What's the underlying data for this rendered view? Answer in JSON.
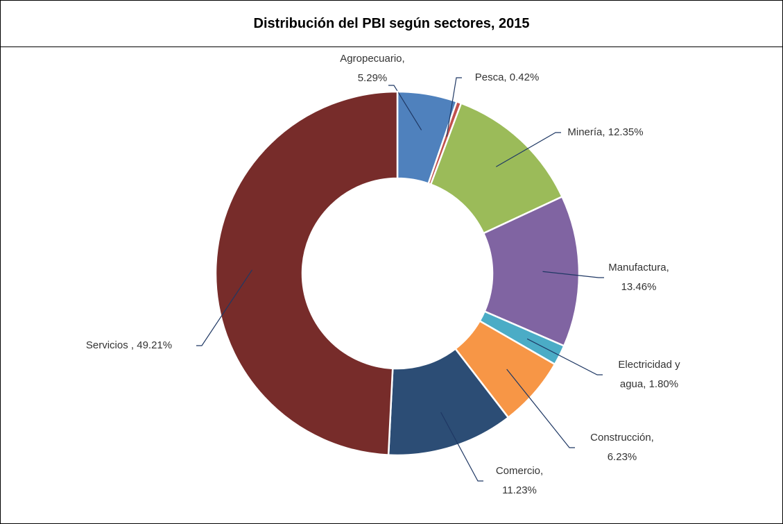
{
  "chart_data": {
    "type": "donut",
    "title": "Distribución del PBI según sectores, 2015",
    "values": [
      5.29,
      0.42,
      12.35,
      13.46,
      1.8,
      6.23,
      11.23,
      49.21
    ],
    "value_labels": [
      "Agropecuario, 5.29%",
      "Pesca, 0.42%",
      "Minería, 12.35%",
      "Manufactura, 13.46%",
      "Electricidad y agua, 1.80%",
      "Construcción, 6.23%",
      "Comercio, 11.23%",
      "Servicios , 49.21%"
    ],
    "colors": [
      "#4f81bd",
      "#c0504d",
      "#9bbb59",
      "#8064a2",
      "#4bacc6",
      "#f79646",
      "#2c4d75",
      "#772c2a"
    ]
  }
}
